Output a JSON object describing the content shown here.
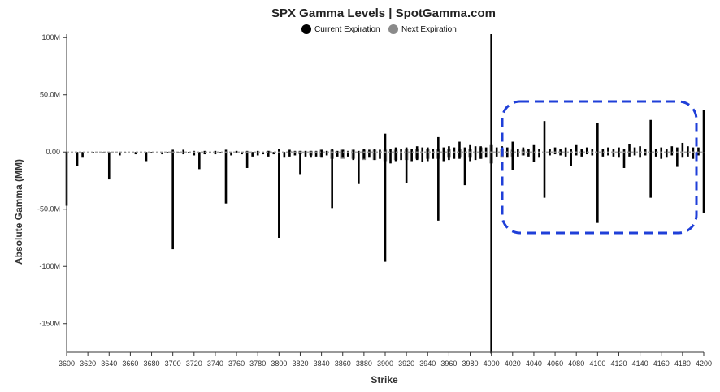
{
  "colors": {
    "current": "#000000",
    "next": "#8a8a8a",
    "highlight": "#1f3fd8"
  },
  "chart_data": {
    "type": "bar",
    "title": "SPX Gamma Levels | SpotGamma.com",
    "xlabel": "Strike",
    "ylabel": "Absolute Gamma (MM)",
    "ylim": [
      -175,
      103
    ],
    "xlim": [
      3600,
      4200
    ],
    "legend_position": "top-center",
    "legend": [
      {
        "name": "Current Expiration",
        "color": "#000000"
      },
      {
        "name": "Next Expiration",
        "color": "#8a8a8a"
      }
    ],
    "y_ticks": [
      {
        "value": 100,
        "label": "100M"
      },
      {
        "value": 50,
        "label": "50.0M"
      },
      {
        "value": 0,
        "label": "0.00"
      },
      {
        "value": -50,
        "label": "-50.0M"
      },
      {
        "value": -100,
        "label": "-100M"
      },
      {
        "value": -150,
        "label": "-150M"
      }
    ],
    "x_ticks": [
      "3600",
      "3620",
      "3640",
      "3660",
      "3680",
      "3700",
      "3720",
      "3740",
      "3760",
      "3780",
      "3800",
      "3820",
      "3840",
      "3860",
      "3880",
      "3900",
      "3920",
      "3940",
      "3960",
      "3980",
      "4000",
      "4020",
      "4040",
      "4060",
      "4080",
      "4100",
      "4120",
      "4140",
      "4160",
      "4180",
      "4200"
    ],
    "series": [
      {
        "name": "Current Expiration",
        "strikes": [
          3600,
          3610,
          3615,
          3625,
          3635,
          3640,
          3650,
          3655,
          3665,
          3675,
          3680,
          3690,
          3695,
          3700,
          3705,
          3710,
          3715,
          3720,
          3725,
          3730,
          3735,
          3740,
          3745,
          3750,
          3755,
          3760,
          3765,
          3770,
          3775,
          3780,
          3785,
          3790,
          3795,
          3800,
          3805,
          3810,
          3815,
          3820,
          3825,
          3830,
          3835,
          3840,
          3845,
          3850,
          3855,
          3860,
          3865,
          3870,
          3875,
          3880,
          3885,
          3890,
          3895,
          3900,
          3905,
          3910,
          3915,
          3920,
          3925,
          3930,
          3935,
          3940,
          3945,
          3950,
          3955,
          3960,
          3965,
          3970,
          3975,
          3980,
          3985,
          3990,
          3995,
          4000,
          4005,
          4010,
          4015,
          4020,
          4025,
          4030,
          4035,
          4040,
          4045,
          4050,
          4055,
          4060,
          4065,
          4070,
          4075,
          4080,
          4085,
          4090,
          4095,
          4100,
          4105,
          4110,
          4115,
          4120,
          4125,
          4130,
          4135,
          4140,
          4145,
          4150,
          4155,
          4160,
          4165,
          4170,
          4175,
          4180,
          4185,
          4190,
          4195,
          4200
        ],
        "pos": [
          0,
          0,
          0,
          0,
          0,
          0,
          0,
          0,
          0,
          0,
          0,
          0,
          0,
          2,
          0,
          2,
          0,
          1,
          0,
          1,
          0,
          1,
          0,
          2,
          0,
          1,
          0,
          1,
          0,
          1,
          0,
          1,
          0,
          3,
          0,
          2,
          1,
          1,
          1,
          1,
          1,
          2,
          1,
          3,
          1,
          2,
          1,
          2,
          1,
          3,
          2,
          3,
          2,
          16,
          3,
          4,
          3,
          4,
          3,
          5,
          4,
          4,
          3,
          13,
          4,
          5,
          4,
          9,
          4,
          6,
          5,
          5,
          4,
          103,
          4,
          5,
          4,
          9,
          3,
          4,
          3,
          6,
          3,
          27,
          3,
          4,
          3,
          4,
          3,
          6,
          3,
          4,
          3,
          25,
          3,
          4,
          3,
          4,
          3,
          7,
          4,
          5,
          3,
          28,
          3,
          4,
          3,
          5,
          4,
          8,
          5,
          4,
          4,
          37
        ],
        "neg": [
          -47,
          -12,
          -5,
          -1,
          -1,
          -24,
          -3,
          -1,
          -2,
          -8,
          -1,
          -2,
          -1,
          -85,
          -1,
          -2,
          -1,
          -3,
          -15,
          -2,
          -1,
          -2,
          -1,
          -45,
          -3,
          -1,
          -2,
          -14,
          -4,
          -3,
          -2,
          -4,
          -2,
          -75,
          -5,
          -4,
          -3,
          -20,
          -4,
          -5,
          -4,
          -5,
          -3,
          -49,
          -4,
          -5,
          -4,
          -7,
          -28,
          -6,
          -5,
          -7,
          -6,
          -96,
          -10,
          -8,
          -7,
          -27,
          -8,
          -7,
          -9,
          -8,
          -6,
          -60,
          -8,
          -7,
          -6,
          -6,
          -29,
          -8,
          -7,
          -6,
          -5,
          -176,
          -4,
          -3,
          -5,
          -16,
          -4,
          -3,
          -4,
          -9,
          -5,
          -40,
          -3,
          -2,
          -3,
          -4,
          -12,
          -3,
          -4,
          -2,
          -3,
          -62,
          -4,
          -3,
          -4,
          -5,
          -14,
          -4,
          -3,
          -5,
          -3,
          -40,
          -4,
          -6,
          -5,
          -3,
          -13,
          -5,
          -4,
          -6,
          -3,
          -53
        ]
      },
      {
        "name": "Next Expiration",
        "strikes": [
          3790,
          3810,
          3820,
          3830,
          3840,
          3850,
          3860,
          3870,
          3880,
          3890,
          3900,
          3910,
          3920,
          3930,
          3940,
          3950,
          3960,
          3970,
          3980,
          3990,
          4000,
          4010,
          4020,
          4030
        ],
        "pos": [
          1,
          1,
          1,
          1,
          2,
          2,
          2,
          2,
          2,
          2,
          2,
          2,
          3,
          3,
          3,
          3,
          3,
          3,
          3,
          4,
          6,
          3,
          2,
          2
        ],
        "neg": [
          -1,
          -1,
          -2,
          -3,
          -4,
          -6,
          -6,
          -6,
          -7,
          -7,
          -8,
          -7,
          -7,
          -6,
          -6,
          -6,
          -5,
          -5,
          -5,
          -6,
          -10,
          -5,
          -4,
          -3
        ]
      }
    ]
  }
}
